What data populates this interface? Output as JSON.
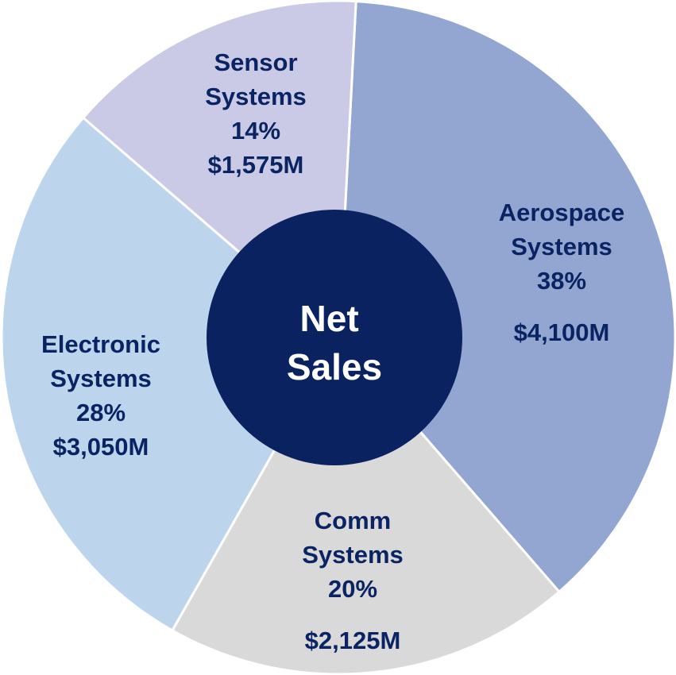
{
  "chart_data": {
    "type": "pie",
    "center_label": [
      "Net",
      "Sales"
    ],
    "slices": [
      {
        "name": "Aerospace Systems",
        "label_lines": [
          "Aerospace",
          "Systems"
        ],
        "percent": "38%",
        "amount": "$4,100M",
        "value": 4100,
        "color": "#93a6d2"
      },
      {
        "name": "Comm Systems",
        "label_lines": [
          "Comm",
          "Systems"
        ],
        "percent": "20%",
        "amount": "$2,125M",
        "value": 2125,
        "color": "#d9d9d9"
      },
      {
        "name": "Electronic Systems",
        "label_lines": [
          "Electronic",
          "Systems"
        ],
        "percent": "28%",
        "amount": "$3,050M",
        "value": 3050,
        "color": "#bdd5ec"
      },
      {
        "name": "Sensor Systems",
        "label_lines": [
          "Sensor",
          "Systems"
        ],
        "percent": "14%",
        "amount": "$1,575M",
        "value": 1575,
        "color": "#cbcae6"
      }
    ]
  },
  "colors": {
    "text": "#0a2463",
    "center_fill": "#0b2260",
    "center_text": "#ffffff",
    "separator": "#ffffff"
  }
}
